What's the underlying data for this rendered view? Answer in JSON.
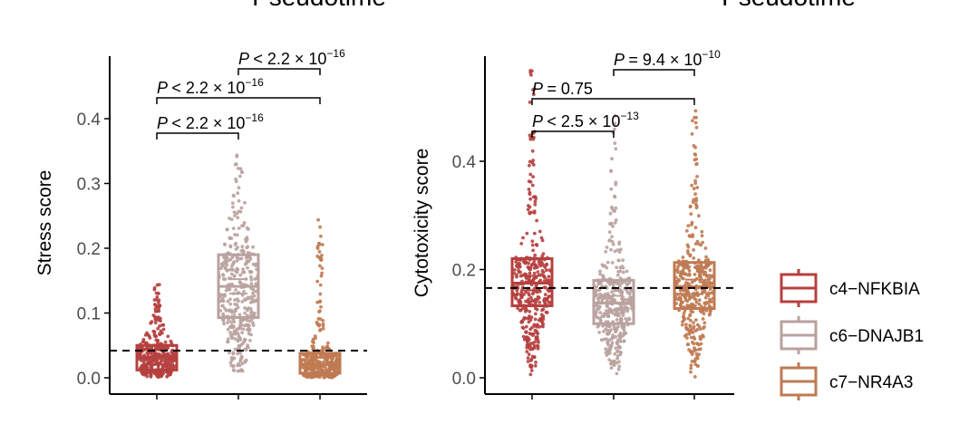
{
  "headers": {
    "left": "Pseudotime",
    "right": "Pseudotime"
  },
  "legend": {
    "items": [
      {
        "label": "c4−NFKBIA",
        "color": "#b5403f"
      },
      {
        "label": "c6−DNAJB1",
        "color": "#b9a29f"
      },
      {
        "label": "c7−NR4A3",
        "color": "#bf7a52"
      }
    ]
  },
  "chart_data": [
    {
      "type": "boxplot",
      "ylabel": "Stress score",
      "ylim": [
        0,
        0.5
      ],
      "yticks": [
        "0.0",
        "0.1",
        "0.2",
        "0.3",
        "0.4"
      ],
      "ytick_values": [
        0,
        0.1,
        0.2,
        0.3,
        0.4
      ],
      "reference_line": 0.042,
      "groups": [
        {
          "name": "c4−NFKBIA",
          "q1": 0.012,
          "median": 0.032,
          "q3": 0.05,
          "min": 0.0,
          "max": 0.152
        },
        {
          "name": "c6−DNAJB1",
          "q1": 0.093,
          "median": 0.141,
          "q3": 0.19,
          "min": 0.0,
          "max": 0.348
        },
        {
          "name": "c7−NR4A3",
          "q1": 0.007,
          "median": 0.02,
          "q3": 0.038,
          "min": 0.0,
          "max": 0.245
        }
      ],
      "comparisons": [
        {
          "from": 0,
          "to": 1,
          "p": "< 2.2 × 10",
          "exp": "−16"
        },
        {
          "from": 0,
          "to": 2,
          "p": "< 2.2 × 10",
          "exp": "−16"
        },
        {
          "from": 1,
          "to": 2,
          "p": "< 2.2 × 10",
          "exp": "−16"
        }
      ]
    },
    {
      "type": "boxplot",
      "ylabel": "Cytotoxicity score",
      "ylim": [
        0,
        0.6
      ],
      "yticks": [
        "0.0",
        "0.2",
        "0.4"
      ],
      "ytick_values": [
        0,
        0.2,
        0.4
      ],
      "reference_line": 0.166,
      "groups": [
        {
          "name": "c4−NFKBIA",
          "q1": 0.133,
          "median": 0.175,
          "q3": 0.22,
          "min": 0.0,
          "max": 0.57
        },
        {
          "name": "c6−DNAJB1",
          "q1": 0.1,
          "median": 0.138,
          "q3": 0.18,
          "min": 0.0,
          "max": 0.5
        },
        {
          "name": "c7−NR4A3",
          "q1": 0.128,
          "median": 0.168,
          "q3": 0.213,
          "min": 0.0,
          "max": 0.5
        }
      ],
      "comparisons": [
        {
          "from": 0,
          "to": 1,
          "p": "< 2.5 × 10",
          "exp": "−13"
        },
        {
          "from": 0,
          "to": 2,
          "p": "= 0.75",
          "exp": ""
        },
        {
          "from": 1,
          "to": 2,
          "p": "= 9.4 × 10",
          "exp": "−10"
        }
      ]
    }
  ]
}
